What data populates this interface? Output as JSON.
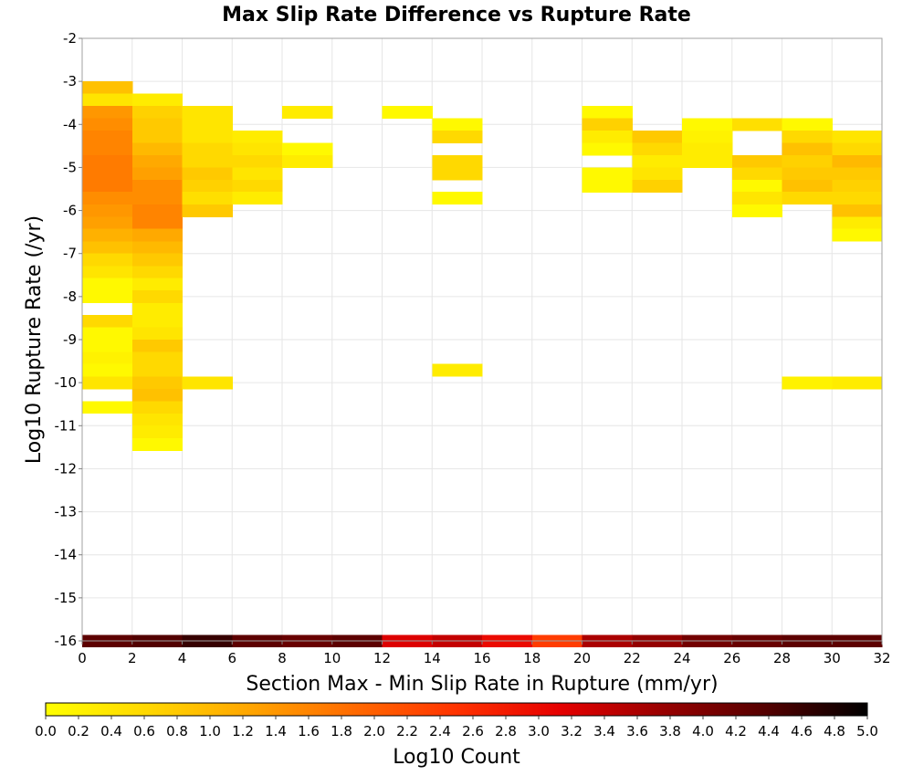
{
  "chart_data": {
    "type": "heatmap",
    "title": "Max Slip Rate Difference vs Rupture Rate",
    "xlabel": "Section Max - Min Slip Rate in Rupture (mm/yr)",
    "ylabel": "Log10 Rupture Rate (/yr)",
    "xlim": [
      0,
      32
    ],
    "ylim": [
      -16,
      -2
    ],
    "x_ticks": [
      "0",
      "2",
      "4",
      "6",
      "8",
      "10",
      "12",
      "14",
      "16",
      "18",
      "20",
      "22",
      "24",
      "26",
      "28",
      "30",
      "32"
    ],
    "y_ticks": [
      "-16",
      "-15",
      "-14",
      "-13",
      "-12",
      "-11",
      "-10",
      "-9",
      "-8",
      "-7",
      "-6",
      "-5",
      "-4",
      "-3",
      "-2"
    ],
    "x_bin_width": 2,
    "y_bin_height": 0.2857,
    "grid": true,
    "colorbar": {
      "label": "Log10 Count",
      "min": 0.0,
      "max": 5.0,
      "ticks": [
        "0.0",
        "0.2",
        "0.4",
        "0.6",
        "0.8",
        "1.0",
        "1.2",
        "1.4",
        "1.6",
        "1.8",
        "2.0",
        "2.2",
        "2.4",
        "2.6",
        "2.8",
        "3.0",
        "3.2",
        "3.4",
        "3.6",
        "3.8",
        "4.0",
        "4.2",
        "4.4",
        "4.6",
        "4.8",
        "5.0"
      ],
      "colors": [
        "#ffff00",
        "#ffd700",
        "#ffa500",
        "#ff6a00",
        "#ff3300",
        "#e60000",
        "#990000",
        "#550000",
        "#000000"
      ]
    },
    "cells": [
      {
        "x": 0,
        "y": -3.14,
        "v": 0.9
      },
      {
        "x": 0,
        "y": -3.43,
        "v": 0.4
      },
      {
        "x": 0,
        "y": -3.71,
        "v": 1.4
      },
      {
        "x": 0,
        "y": -4.0,
        "v": 1.5
      },
      {
        "x": 0,
        "y": -4.29,
        "v": 1.6
      },
      {
        "x": 0,
        "y": -4.57,
        "v": 1.6
      },
      {
        "x": 0,
        "y": -4.86,
        "v": 1.7
      },
      {
        "x": 0,
        "y": -5.14,
        "v": 1.7
      },
      {
        "x": 0,
        "y": -5.43,
        "v": 1.7
      },
      {
        "x": 0,
        "y": -5.71,
        "v": 1.5
      },
      {
        "x": 0,
        "y": -6.0,
        "v": 1.4
      },
      {
        "x": 0,
        "y": -6.29,
        "v": 1.3
      },
      {
        "x": 0,
        "y": -6.57,
        "v": 1.1
      },
      {
        "x": 0,
        "y": -6.86,
        "v": 0.9
      },
      {
        "x": 0,
        "y": -7.14,
        "v": 0.6
      },
      {
        "x": 0,
        "y": -7.43,
        "v": 0.4
      },
      {
        "x": 0,
        "y": -7.71,
        "v": 0.1
      },
      {
        "x": 0,
        "y": -8.0,
        "v": 0.1
      },
      {
        "x": 0,
        "y": -8.57,
        "v": 0.6
      },
      {
        "x": 0,
        "y": -8.86,
        "v": 0.1
      },
      {
        "x": 0,
        "y": -9.14,
        "v": 0.1
      },
      {
        "x": 0,
        "y": -9.43,
        "v": 0.2
      },
      {
        "x": 0,
        "y": -9.71,
        "v": 0.1
      },
      {
        "x": 0,
        "y": -10.0,
        "v": 0.4
      },
      {
        "x": 0,
        "y": -10.57,
        "v": 0.1
      },
      {
        "x": 2,
        "y": -3.43,
        "v": 0.3
      },
      {
        "x": 2,
        "y": -3.71,
        "v": 0.7
      },
      {
        "x": 2,
        "y": -4.0,
        "v": 0.8
      },
      {
        "x": 2,
        "y": -4.29,
        "v": 0.8
      },
      {
        "x": 2,
        "y": -4.57,
        "v": 1.0
      },
      {
        "x": 2,
        "y": -4.86,
        "v": 1.2
      },
      {
        "x": 2,
        "y": -5.14,
        "v": 1.3
      },
      {
        "x": 2,
        "y": -5.43,
        "v": 1.5
      },
      {
        "x": 2,
        "y": -5.71,
        "v": 1.5
      },
      {
        "x": 2,
        "y": -6.0,
        "v": 1.6
      },
      {
        "x": 2,
        "y": -6.29,
        "v": 1.6
      },
      {
        "x": 2,
        "y": -6.57,
        "v": 1.2
      },
      {
        "x": 2,
        "y": -6.86,
        "v": 1.0
      },
      {
        "x": 2,
        "y": -7.14,
        "v": 0.8
      },
      {
        "x": 2,
        "y": -7.43,
        "v": 0.6
      },
      {
        "x": 2,
        "y": -7.71,
        "v": 0.3
      },
      {
        "x": 2,
        "y": -8.0,
        "v": 0.6
      },
      {
        "x": 2,
        "y": -8.29,
        "v": 0.3
      },
      {
        "x": 2,
        "y": -8.57,
        "v": 0.3
      },
      {
        "x": 2,
        "y": -8.86,
        "v": 0.4
      },
      {
        "x": 2,
        "y": -9.14,
        "v": 0.8
      },
      {
        "x": 2,
        "y": -9.43,
        "v": 0.6
      },
      {
        "x": 2,
        "y": -9.71,
        "v": 0.6
      },
      {
        "x": 2,
        "y": -10.0,
        "v": 0.8
      },
      {
        "x": 2,
        "y": -10.29,
        "v": 0.9
      },
      {
        "x": 2,
        "y": -10.57,
        "v": 0.6
      },
      {
        "x": 2,
        "y": -10.86,
        "v": 0.4
      },
      {
        "x": 2,
        "y": -11.14,
        "v": 0.3
      },
      {
        "x": 2,
        "y": -11.43,
        "v": 0.1
      },
      {
        "x": 4,
        "y": -3.71,
        "v": 0.4
      },
      {
        "x": 4,
        "y": -4.0,
        "v": 0.4
      },
      {
        "x": 4,
        "y": -4.29,
        "v": 0.4
      },
      {
        "x": 4,
        "y": -4.57,
        "v": 0.6
      },
      {
        "x": 4,
        "y": -4.86,
        "v": 0.6
      },
      {
        "x": 4,
        "y": -5.14,
        "v": 0.8
      },
      {
        "x": 4,
        "y": -5.43,
        "v": 0.7
      },
      {
        "x": 4,
        "y": -5.71,
        "v": 0.5
      },
      {
        "x": 4,
        "y": -6.0,
        "v": 0.8
      },
      {
        "x": 4,
        "y": -10.0,
        "v": 0.4
      },
      {
        "x": 6,
        "y": -4.29,
        "v": 0.3
      },
      {
        "x": 6,
        "y": -4.57,
        "v": 0.4
      },
      {
        "x": 6,
        "y": -4.86,
        "v": 0.6
      },
      {
        "x": 6,
        "y": -5.14,
        "v": 0.4
      },
      {
        "x": 6,
        "y": -5.43,
        "v": 0.6
      },
      {
        "x": 6,
        "y": -5.71,
        "v": 0.3
      },
      {
        "x": 8,
        "y": -3.71,
        "v": 0.3
      },
      {
        "x": 8,
        "y": -4.57,
        "v": 0.1
      },
      {
        "x": 8,
        "y": -4.86,
        "v": 0.3
      },
      {
        "x": 12,
        "y": -3.71,
        "v": 0.1
      },
      {
        "x": 14,
        "y": -4.0,
        "v": 0.1
      },
      {
        "x": 14,
        "y": -4.29,
        "v": 0.6
      },
      {
        "x": 14,
        "y": -4.86,
        "v": 0.6
      },
      {
        "x": 14,
        "y": -5.14,
        "v": 0.6
      },
      {
        "x": 14,
        "y": -5.71,
        "v": 0.1
      },
      {
        "x": 14,
        "y": -9.71,
        "v": 0.3
      },
      {
        "x": 20,
        "y": -3.71,
        "v": 0.1
      },
      {
        "x": 20,
        "y": -4.0,
        "v": 0.7
      },
      {
        "x": 20,
        "y": -4.29,
        "v": 0.3
      },
      {
        "x": 20,
        "y": -4.57,
        "v": 0.1
      },
      {
        "x": 20,
        "y": -5.14,
        "v": 0.1
      },
      {
        "x": 20,
        "y": -5.43,
        "v": 0.1
      },
      {
        "x": 22,
        "y": -4.29,
        "v": 0.8
      },
      {
        "x": 22,
        "y": -4.57,
        "v": 0.6
      },
      {
        "x": 22,
        "y": -4.86,
        "v": 0.3
      },
      {
        "x": 22,
        "y": -5.14,
        "v": 0.4
      },
      {
        "x": 22,
        "y": -5.43,
        "v": 0.7
      },
      {
        "x": 24,
        "y": -4.0,
        "v": 0.1
      },
      {
        "x": 24,
        "y": -4.29,
        "v": 0.2
      },
      {
        "x": 24,
        "y": -4.57,
        "v": 0.3
      },
      {
        "x": 24,
        "y": -4.86,
        "v": 0.3
      },
      {
        "x": 26,
        "y": -4.0,
        "v": 0.5
      },
      {
        "x": 26,
        "y": -4.86,
        "v": 0.8
      },
      {
        "x": 26,
        "y": -5.14,
        "v": 0.6
      },
      {
        "x": 26,
        "y": -5.43,
        "v": 0.1
      },
      {
        "x": 26,
        "y": -5.71,
        "v": 0.4
      },
      {
        "x": 26,
        "y": -6.0,
        "v": 0.1
      },
      {
        "x": 28,
        "y": -4.0,
        "v": 0.1
      },
      {
        "x": 28,
        "y": -4.29,
        "v": 0.6
      },
      {
        "x": 28,
        "y": -4.57,
        "v": 0.9
      },
      {
        "x": 28,
        "y": -4.86,
        "v": 0.7
      },
      {
        "x": 28,
        "y": -5.14,
        "v": 0.8
      },
      {
        "x": 28,
        "y": -5.43,
        "v": 0.9
      },
      {
        "x": 28,
        "y": -5.71,
        "v": 0.6
      },
      {
        "x": 28,
        "y": -10.0,
        "v": 0.2
      },
      {
        "x": 30,
        "y": -4.29,
        "v": 0.4
      },
      {
        "x": 30,
        "y": -4.57,
        "v": 0.6
      },
      {
        "x": 30,
        "y": -4.86,
        "v": 1.0
      },
      {
        "x": 30,
        "y": -5.14,
        "v": 0.8
      },
      {
        "x": 30,
        "y": -5.43,
        "v": 0.7
      },
      {
        "x": 30,
        "y": -5.71,
        "v": 0.6
      },
      {
        "x": 30,
        "y": -6.0,
        "v": 0.9
      },
      {
        "x": 30,
        "y": -6.29,
        "v": 0.3
      },
      {
        "x": 30,
        "y": -6.57,
        "v": 0.1
      },
      {
        "x": 30,
        "y": -10.0,
        "v": 0.3
      },
      {
        "x": 0,
        "y": -16.0,
        "v": 4.3
      },
      {
        "x": 2,
        "y": -16.0,
        "v": 4.4
      },
      {
        "x": 4,
        "y": -16.0,
        "v": 4.6
      },
      {
        "x": 6,
        "y": -16.0,
        "v": 4.3
      },
      {
        "x": 8,
        "y": -16.0,
        "v": 4.2
      },
      {
        "x": 10,
        "y": -16.0,
        "v": 4.3
      },
      {
        "x": 12,
        "y": -16.0,
        "v": 3.2
      },
      {
        "x": 14,
        "y": -16.0,
        "v": 3.4
      },
      {
        "x": 16,
        "y": -16.0,
        "v": 3.0
      },
      {
        "x": 18,
        "y": -16.0,
        "v": 2.4
      },
      {
        "x": 20,
        "y": -16.0,
        "v": 3.6
      },
      {
        "x": 22,
        "y": -16.0,
        "v": 3.8
      },
      {
        "x": 24,
        "y": -16.0,
        "v": 4.1
      },
      {
        "x": 26,
        "y": -16.0,
        "v": 4.2
      },
      {
        "x": 28,
        "y": -16.0,
        "v": 4.3
      },
      {
        "x": 30,
        "y": -16.0,
        "v": 4.3
      }
    ]
  }
}
